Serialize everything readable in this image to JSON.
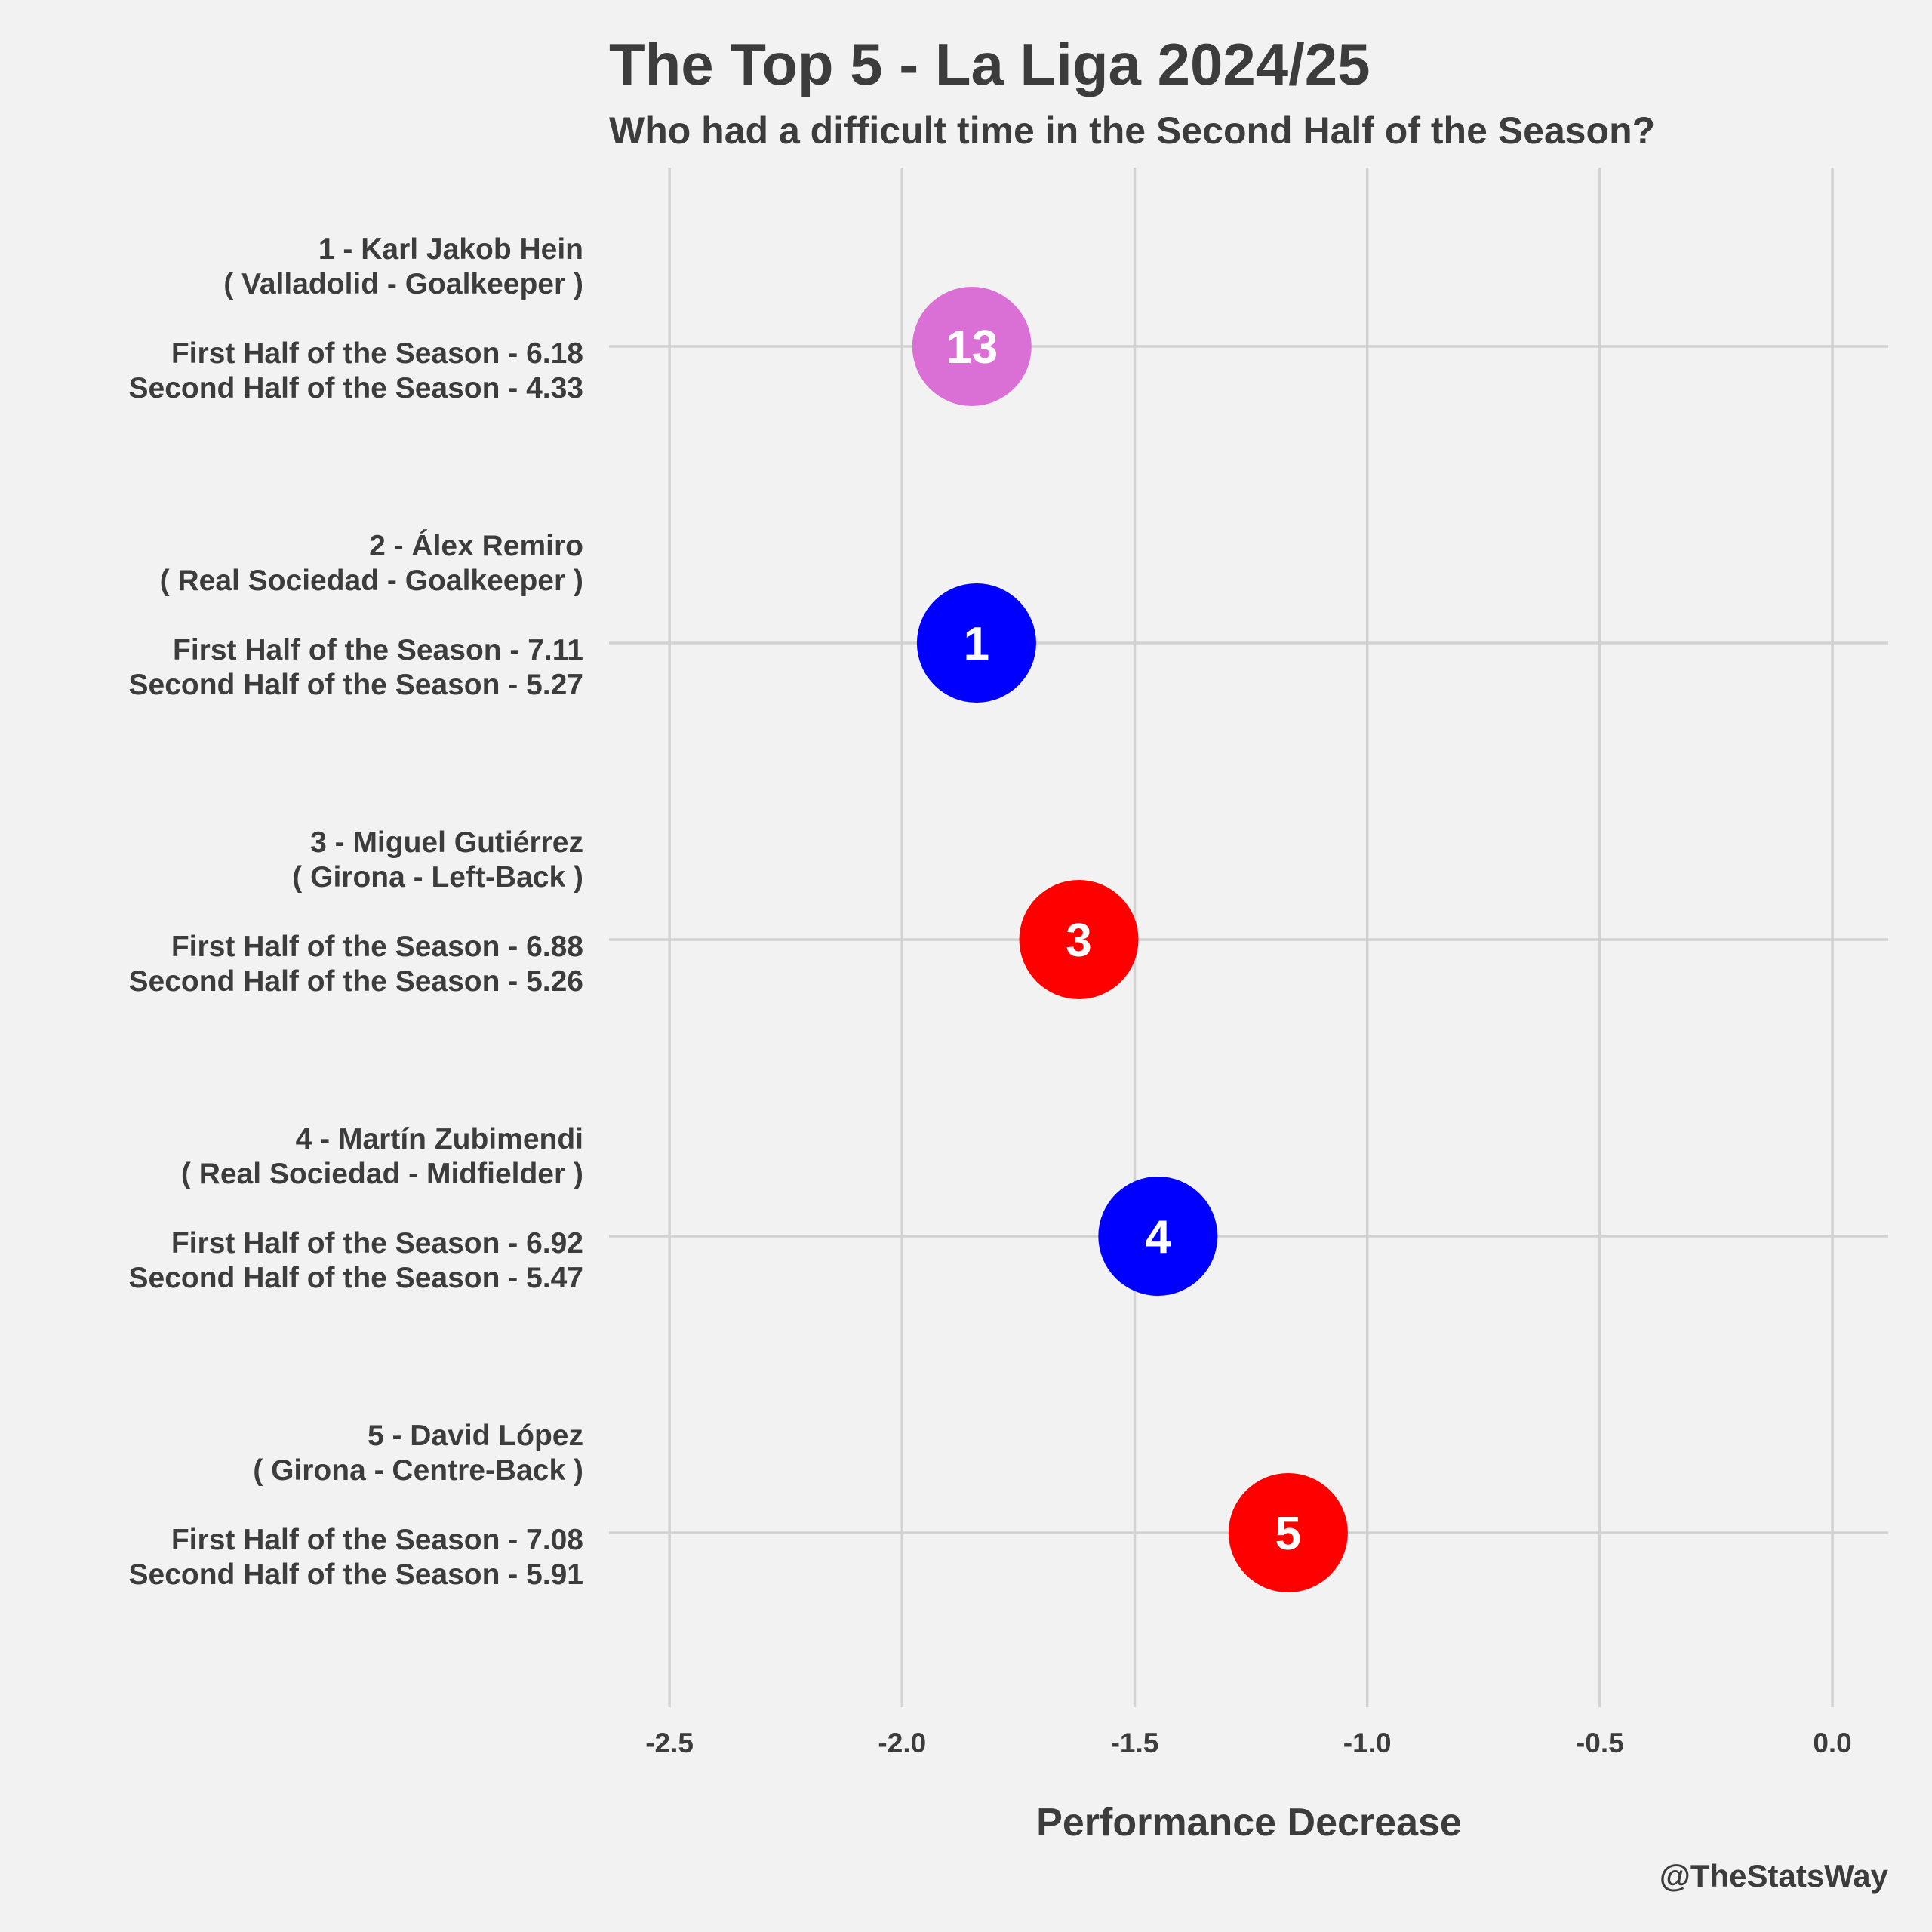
{
  "chart_data": {
    "type": "scatter",
    "title": "The Top 5 - La Liga 2024/25",
    "subtitle": "Who had a difficult time in the Second Half of the Season?",
    "xlabel": "Performance Decrease",
    "caption": "@TheStatsWay",
    "xlim": [
      -2.63,
      0.12
    ],
    "x_ticks": [
      -2.5,
      -2.0,
      -1.5,
      -1.0,
      -0.5,
      0.0
    ],
    "x_tick_labels": [
      "-2.5",
      "-2.0",
      "-1.5",
      "-1.0",
      "-0.5",
      "0.0"
    ],
    "grid": true,
    "legend": "none",
    "players": [
      {
        "lines": [
          "1 - Karl Jakob Hein",
          "( Valladolid - Goalkeeper )",
          "",
          "First Half of the Season - 6.18",
          "Second Half of the Season - 4.33"
        ],
        "first_half": 6.18,
        "second_half": 4.33,
        "x": -1.85,
        "point_label": "13",
        "color": "#da70d6"
      },
      {
        "lines": [
          "2 - Álex Remiro",
          "( Real Sociedad - Goalkeeper )",
          "",
          "First Half of the Season - 7.11",
          "Second Half of the Season - 5.27"
        ],
        "first_half": 7.11,
        "second_half": 5.27,
        "x": -1.84,
        "point_label": "1",
        "color": "#0000ff"
      },
      {
        "lines": [
          "3 - Miguel Gutiérrez",
          "( Girona - Left-Back )",
          "",
          "First Half of the Season - 6.88",
          "Second Half of the Season - 5.26"
        ],
        "first_half": 6.88,
        "second_half": 5.26,
        "x": -1.62,
        "point_label": "3",
        "color": "#ff0000"
      },
      {
        "lines": [
          "4 - Martín Zubimendi",
          "( Real Sociedad - Midfielder )",
          "",
          "First Half of the Season - 6.92",
          "Second Half of the Season - 5.47"
        ],
        "first_half": 6.92,
        "second_half": 5.47,
        "x": -1.45,
        "point_label": "4",
        "color": "#0000ff"
      },
      {
        "lines": [
          "5 - David López",
          "( Girona - Centre-Back )",
          "",
          "First Half of the Season - 7.08",
          "Second Half of the Season - 5.91"
        ],
        "first_half": 7.08,
        "second_half": 5.91,
        "x": -1.17,
        "point_label": "5",
        "color": "#ff0000"
      }
    ]
  }
}
